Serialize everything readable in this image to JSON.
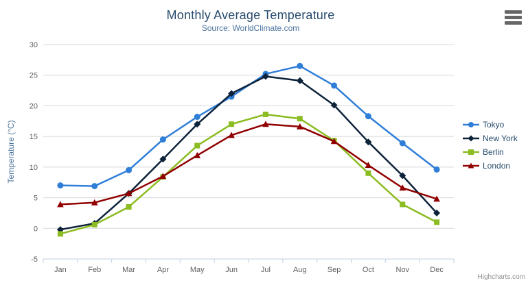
{
  "header": {
    "title": "Monthly Average Temperature",
    "subtitle": "Source: WorldClimate.com"
  },
  "export_menu": {
    "icon": "hamburger-menu-icon"
  },
  "credits": {
    "label": "Highcharts.com"
  },
  "palette": {
    "title_color": "#274b6d",
    "subtitle_color": "#4d759e",
    "axis_label_color": "#606060",
    "axis_title_color": "#4d759e",
    "grid_color": "#d8d8d8",
    "axis_line_color": "#c0d0e0",
    "legend_text_color": "#274b6d",
    "credits_color": "#909090"
  },
  "chart_data": {
    "type": "line",
    "title": "Monthly Average Temperature",
    "subtitle": "Source: WorldClimate.com",
    "xlabel": "",
    "ylabel": "Temperature (°C)",
    "ylim": [
      -5,
      30
    ],
    "ytick_step": 5,
    "yticks": [
      -5,
      0,
      5,
      10,
      15,
      20,
      25,
      30
    ],
    "grid": true,
    "legend_position": "right",
    "categories": [
      "Jan",
      "Feb",
      "Mar",
      "Apr",
      "May",
      "Jun",
      "Jul",
      "Aug",
      "Sep",
      "Oct",
      "Nov",
      "Dec"
    ],
    "series": [
      {
        "name": "Tokyo",
        "color": "#2f7ed8",
        "marker": "circle",
        "values": [
          7.0,
          6.9,
          9.5,
          14.5,
          18.2,
          21.5,
          25.2,
          26.5,
          23.3,
          18.3,
          13.9,
          9.6
        ]
      },
      {
        "name": "New York",
        "color": "#0d233a",
        "marker": "diamond",
        "values": [
          -0.2,
          0.8,
          5.7,
          11.3,
          17.0,
          22.0,
          24.8,
          24.1,
          20.1,
          14.1,
          8.6,
          2.5
        ]
      },
      {
        "name": "Berlin",
        "color": "#8bbc21",
        "marker": "square",
        "values": [
          -0.9,
          0.6,
          3.5,
          8.4,
          13.5,
          17.0,
          18.6,
          17.9,
          14.3,
          9.0,
          3.9,
          1.0
        ]
      },
      {
        "name": "London",
        "color": "#910000",
        "marker": "triangle",
        "values": [
          3.9,
          4.2,
          5.7,
          8.5,
          11.9,
          15.2,
          17.0,
          16.6,
          14.2,
          10.3,
          6.6,
          4.8
        ]
      }
    ]
  }
}
